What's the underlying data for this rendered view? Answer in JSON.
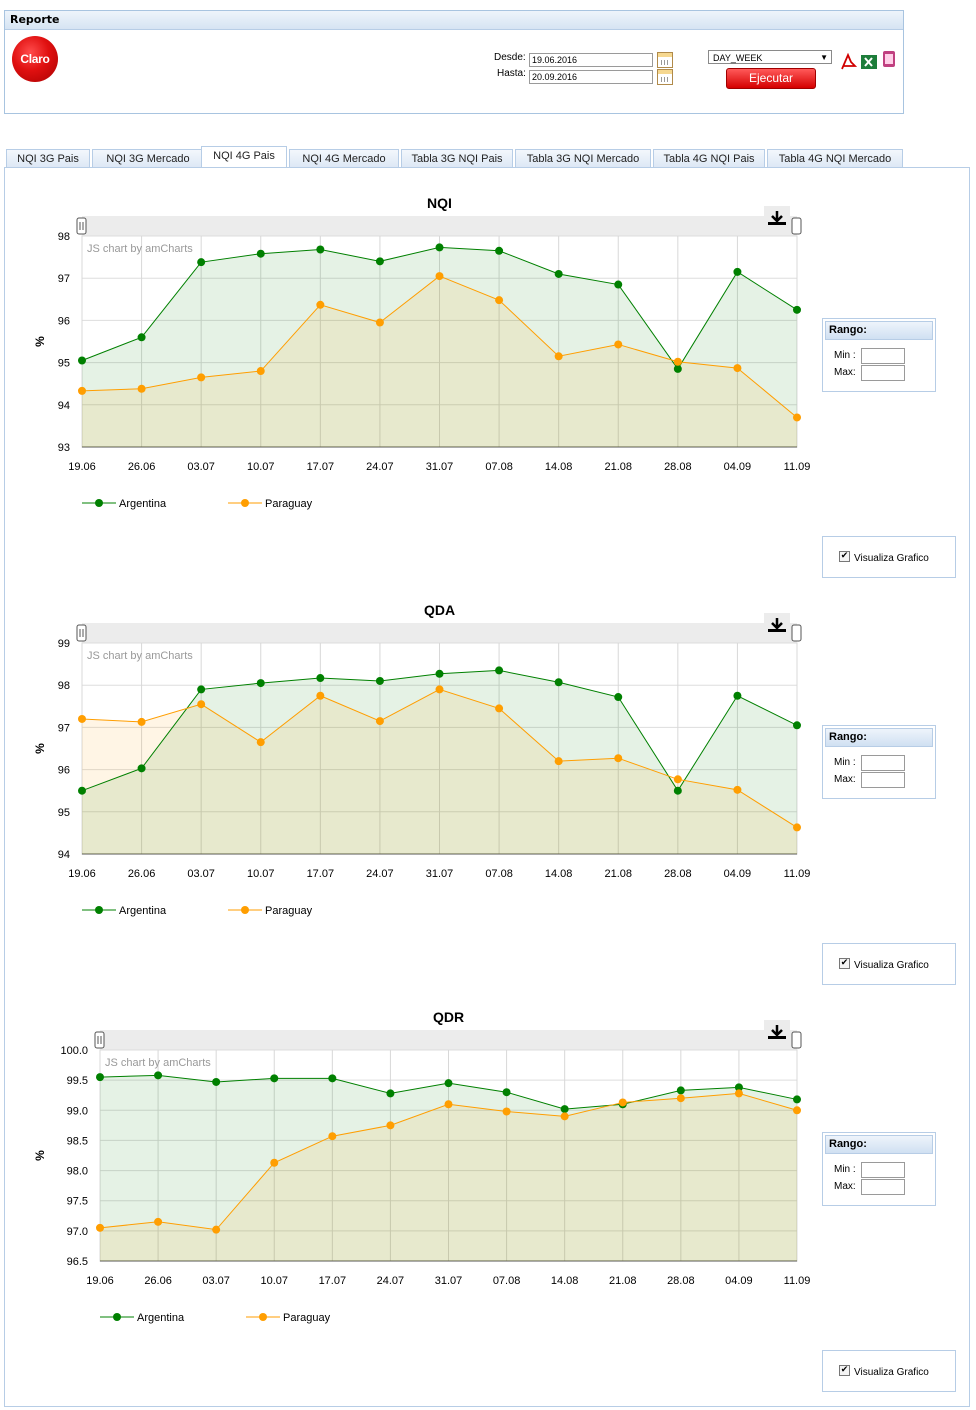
{
  "report": {
    "title": "Reporte",
    "logo_text": "Claro",
    "desde_label": "Desde:",
    "desde_value": "19.06.2016",
    "hasta_label": "Hasta:",
    "hasta_value": "20.09.2016",
    "period_select": "DAY_WEEK",
    "run_label": "Ejecutar"
  },
  "tabs": [
    {
      "label": "NQI 3G Pais",
      "active": false
    },
    {
      "label": "NQI 3G Mercado",
      "active": false
    },
    {
      "label": "NQI 4G Pais",
      "active": true
    },
    {
      "label": "NQI 4G Mercado",
      "active": false
    },
    {
      "label": "Tabla 3G NQI Pais",
      "active": false
    },
    {
      "label": "Tabla 3G NQI Mercado",
      "active": false
    },
    {
      "label": "Tabla 4G NQI Pais",
      "active": false
    },
    {
      "label": "Tabla 4G NQI Mercado",
      "active": false
    }
  ],
  "side": {
    "rango_title": "Rango:",
    "min_label": "Min :",
    "max_label": "Max:",
    "visualiza_label": "Visualiza Grafico",
    "visualiza_checked": "✔"
  },
  "credit": "JS chart by amCharts",
  "colors": {
    "argentina": "#008000",
    "paraguay": "#ff9e01"
  },
  "chart_data": [
    {
      "type": "line",
      "title": "NQI",
      "ylabel": "%",
      "x": [
        "19.06",
        "26.06",
        "03.07",
        "10.07",
        "17.07",
        "24.07",
        "31.07",
        "07.08",
        "14.08",
        "21.08",
        "28.08",
        "04.09",
        "11.09"
      ],
      "ylim": [
        93,
        98
      ],
      "yticks": [
        "93",
        "94",
        "95",
        "96",
        "97",
        "98"
      ],
      "series": [
        {
          "name": "Argentina",
          "values": [
            95.05,
            95.6,
            97.38,
            97.58,
            97.68,
            97.4,
            97.73,
            97.65,
            97.1,
            96.85,
            94.85,
            97.15,
            96.25
          ]
        },
        {
          "name": "Paraguay",
          "values": [
            94.33,
            94.38,
            94.65,
            94.8,
            96.37,
            95.95,
            97.05,
            96.48,
            95.15,
            95.43,
            95.02,
            94.87,
            93.7
          ]
        }
      ]
    },
    {
      "type": "line",
      "title": "QDA",
      "ylabel": "%",
      "x": [
        "19.06",
        "26.06",
        "03.07",
        "10.07",
        "17.07",
        "24.07",
        "31.07",
        "07.08",
        "14.08",
        "21.08",
        "28.08",
        "04.09",
        "11.09"
      ],
      "ylim": [
        94,
        99
      ],
      "yticks": [
        "94",
        "95",
        "96",
        "97",
        "98",
        "99"
      ],
      "series": [
        {
          "name": "Argentina",
          "values": [
            95.5,
            96.03,
            97.9,
            98.05,
            98.17,
            98.1,
            98.27,
            98.35,
            98.07,
            97.72,
            95.5,
            97.75,
            97.05
          ]
        },
        {
          "name": "Paraguay",
          "values": [
            97.2,
            97.13,
            97.55,
            96.65,
            97.75,
            97.15,
            97.9,
            97.45,
            96.2,
            96.27,
            95.77,
            95.52,
            94.63
          ]
        }
      ]
    },
    {
      "type": "line",
      "title": "QDR",
      "ylabel": "%",
      "x": [
        "19.06",
        "26.06",
        "03.07",
        "10.07",
        "17.07",
        "24.07",
        "31.07",
        "07.08",
        "14.08",
        "21.08",
        "28.08",
        "04.09",
        "11.09"
      ],
      "ylim": [
        96.5,
        100.0
      ],
      "yticks": [
        "96.5",
        "97.0",
        "97.5",
        "98.0",
        "98.5",
        "99.0",
        "99.5",
        "100.0"
      ],
      "series": [
        {
          "name": "Argentina",
          "values": [
            99.55,
            99.58,
            99.47,
            99.53,
            99.53,
            99.28,
            99.45,
            99.3,
            99.02,
            99.1,
            99.33,
            99.38,
            99.18
          ]
        },
        {
          "name": "Paraguay",
          "values": [
            97.05,
            97.15,
            97.02,
            98.13,
            98.57,
            98.75,
            99.1,
            98.98,
            98.9,
            99.13,
            99.2,
            99.28,
            99.0
          ]
        }
      ]
    }
  ]
}
